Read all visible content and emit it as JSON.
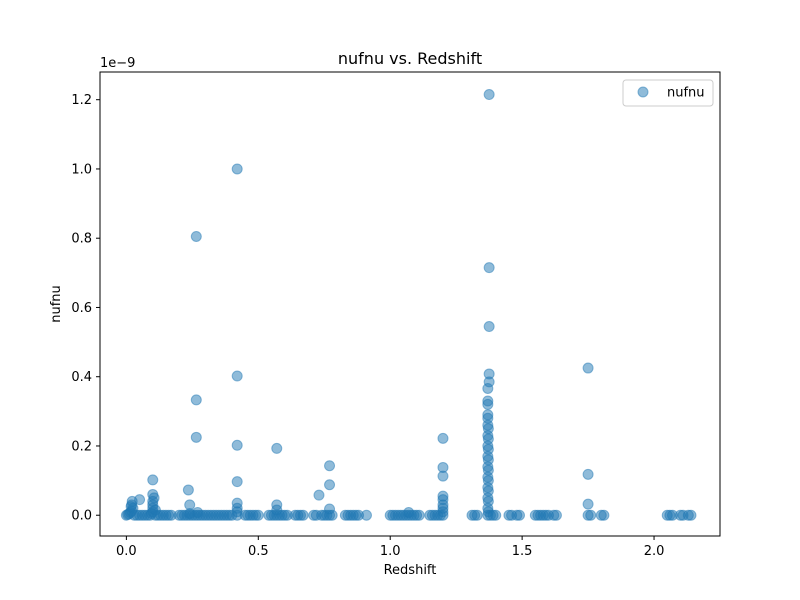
{
  "chart_data": {
    "type": "scatter",
    "title": "nufnu vs. Redshift",
    "xlabel": "Redshift",
    "ylabel": "nufnu",
    "offset_text": "1e−9",
    "xlim": [
      -0.1,
      2.25
    ],
    "ylim": [
      -0.06,
      1.28
    ],
    "xticks": [
      0.0,
      0.5,
      1.0,
      1.5,
      2.0
    ],
    "xtick_labels": [
      "0.0",
      "0.5",
      "1.0",
      "1.5",
      "2.0"
    ],
    "yticks": [
      0.0,
      0.2,
      0.4,
      0.6,
      0.8,
      1.0,
      1.2
    ],
    "ytick_labels": [
      "0.0",
      "0.2",
      "0.4",
      "0.6",
      "0.8",
      "1.0",
      "1.2"
    ],
    "grid": false,
    "legend_position": "top-right",
    "color": "#1f77b4",
    "marker_alpha": 0.5,
    "series": [
      {
        "name": "nufnu",
        "points": [
          [
            0.0,
            0.0
          ],
          [
            0.005,
            0.002
          ],
          [
            0.01,
            0.004
          ],
          [
            0.015,
            0.008
          ],
          [
            0.02,
            0.012
          ],
          [
            0.025,
            0.02
          ],
          [
            0.02,
            0.03
          ],
          [
            0.022,
            0.04
          ],
          [
            0.018,
            0.025
          ],
          [
            0.03,
            0.0
          ],
          [
            0.04,
            0.0
          ],
          [
            0.05,
            0.0
          ],
          [
            0.06,
            0.0
          ],
          [
            0.05,
            0.045
          ],
          [
            0.07,
            0.0
          ],
          [
            0.08,
            0.0
          ],
          [
            0.09,
            0.0
          ],
          [
            0.095,
            0.005
          ],
          [
            0.1,
            0.01
          ],
          [
            0.1,
            0.02
          ],
          [
            0.1,
            0.03
          ],
          [
            0.1,
            0.04
          ],
          [
            0.105,
            0.05
          ],
          [
            0.1,
            0.06
          ],
          [
            0.1,
            0.102
          ],
          [
            0.11,
            0.0
          ],
          [
            0.11,
            0.015
          ],
          [
            0.12,
            0.0
          ],
          [
            0.13,
            0.0
          ],
          [
            0.14,
            0.0
          ],
          [
            0.15,
            0.0
          ],
          [
            0.16,
            0.0
          ],
          [
            0.17,
            0.0
          ],
          [
            0.2,
            0.0
          ],
          [
            0.21,
            0.0
          ],
          [
            0.22,
            0.0
          ],
          [
            0.23,
            0.0
          ],
          [
            0.235,
            0.073
          ],
          [
            0.24,
            0.0
          ],
          [
            0.24,
            0.005
          ],
          [
            0.24,
            0.03
          ],
          [
            0.25,
            0.0
          ],
          [
            0.26,
            0.0
          ],
          [
            0.265,
            0.805
          ],
          [
            0.265,
            0.333
          ],
          [
            0.265,
            0.225
          ],
          [
            0.27,
            0.0
          ],
          [
            0.27,
            0.008
          ],
          [
            0.28,
            0.0
          ],
          [
            0.29,
            0.0
          ],
          [
            0.3,
            0.0
          ],
          [
            0.31,
            0.0
          ],
          [
            0.32,
            0.0
          ],
          [
            0.33,
            0.0
          ],
          [
            0.34,
            0.0
          ],
          [
            0.35,
            0.0
          ],
          [
            0.36,
            0.0
          ],
          [
            0.37,
            0.0
          ],
          [
            0.38,
            0.0
          ],
          [
            0.39,
            0.0
          ],
          [
            0.4,
            0.0
          ],
          [
            0.42,
            0.0
          ],
          [
            0.42,
            1.0
          ],
          [
            0.42,
            0.402
          ],
          [
            0.42,
            0.202
          ],
          [
            0.42,
            0.097
          ],
          [
            0.42,
            0.035
          ],
          [
            0.42,
            0.02
          ],
          [
            0.42,
            0.01
          ],
          [
            0.45,
            0.0
          ],
          [
            0.46,
            0.0
          ],
          [
            0.47,
            0.0
          ],
          [
            0.48,
            0.0
          ],
          [
            0.49,
            0.0
          ],
          [
            0.5,
            0.0
          ],
          [
            0.54,
            0.0
          ],
          [
            0.55,
            0.0
          ],
          [
            0.56,
            0.0
          ],
          [
            0.57,
            0.0
          ],
          [
            0.57,
            0.193
          ],
          [
            0.57,
            0.03
          ],
          [
            0.57,
            0.015
          ],
          [
            0.58,
            0.0
          ],
          [
            0.59,
            0.0
          ],
          [
            0.6,
            0.0
          ],
          [
            0.61,
            0.0
          ],
          [
            0.64,
            0.0
          ],
          [
            0.65,
            0.0
          ],
          [
            0.66,
            0.0
          ],
          [
            0.67,
            0.0
          ],
          [
            0.71,
            0.0
          ],
          [
            0.72,
            0.0
          ],
          [
            0.73,
            0.058
          ],
          [
            0.74,
            0.0
          ],
          [
            0.75,
            0.0
          ],
          [
            0.76,
            0.0
          ],
          [
            0.77,
            0.0
          ],
          [
            0.77,
            0.143
          ],
          [
            0.77,
            0.088
          ],
          [
            0.77,
            0.018
          ],
          [
            0.78,
            0.0
          ],
          [
            0.83,
            0.0
          ],
          [
            0.84,
            0.0
          ],
          [
            0.85,
            0.0
          ],
          [
            0.86,
            0.0
          ],
          [
            0.87,
            0.0
          ],
          [
            0.88,
            0.0
          ],
          [
            0.91,
            0.0
          ],
          [
            1.0,
            0.0
          ],
          [
            1.01,
            0.0
          ],
          [
            1.02,
            0.0
          ],
          [
            1.03,
            0.0
          ],
          [
            1.04,
            0.0
          ],
          [
            1.05,
            0.0
          ],
          [
            1.06,
            0.0
          ],
          [
            1.07,
            0.0
          ],
          [
            1.07,
            0.008
          ],
          [
            1.08,
            0.0
          ],
          [
            1.09,
            0.0
          ],
          [
            1.1,
            0.0
          ],
          [
            1.11,
            0.0
          ],
          [
            1.15,
            0.0
          ],
          [
            1.16,
            0.0
          ],
          [
            1.17,
            0.0
          ],
          [
            1.18,
            0.0
          ],
          [
            1.19,
            0.0
          ],
          [
            1.2,
            0.0
          ],
          [
            1.2,
            0.01
          ],
          [
            1.2,
            0.02
          ],
          [
            1.2,
            0.03
          ],
          [
            1.2,
            0.045
          ],
          [
            1.2,
            0.055
          ],
          [
            1.2,
            0.113
          ],
          [
            1.2,
            0.138
          ],
          [
            1.2,
            0.222
          ],
          [
            1.31,
            0.0
          ],
          [
            1.32,
            0.0
          ],
          [
            1.33,
            0.0
          ],
          [
            1.37,
            0.0
          ],
          [
            1.37,
            0.02
          ],
          [
            1.37,
            0.05
          ],
          [
            1.37,
            0.08
          ],
          [
            1.37,
            0.11
          ],
          [
            1.37,
            0.14
          ],
          [
            1.37,
            0.17
          ],
          [
            1.37,
            0.2
          ],
          [
            1.37,
            0.23
          ],
          [
            1.37,
            0.26
          ],
          [
            1.37,
            0.28
          ],
          [
            1.37,
            0.29
          ],
          [
            1.372,
            0.01
          ],
          [
            1.372,
            0.04
          ],
          [
            1.372,
            0.07
          ],
          [
            1.372,
            0.1
          ],
          [
            1.372,
            0.13
          ],
          [
            1.372,
            0.16
          ],
          [
            1.372,
            0.19
          ],
          [
            1.372,
            0.22
          ],
          [
            1.372,
            0.25
          ],
          [
            1.37,
            0.32
          ],
          [
            1.37,
            0.33
          ],
          [
            1.37,
            0.366
          ],
          [
            1.375,
            0.385
          ],
          [
            1.375,
            0.408
          ],
          [
            1.375,
            0.545
          ],
          [
            1.375,
            0.715
          ],
          [
            1.375,
            1.215
          ],
          [
            1.38,
            0.0
          ],
          [
            1.39,
            0.0
          ],
          [
            1.4,
            0.0
          ],
          [
            1.45,
            0.0
          ],
          [
            1.46,
            0.0
          ],
          [
            1.48,
            0.0
          ],
          [
            1.49,
            0.0
          ],
          [
            1.55,
            0.0
          ],
          [
            1.56,
            0.0
          ],
          [
            1.57,
            0.0
          ],
          [
            1.58,
            0.0
          ],
          [
            1.59,
            0.0
          ],
          [
            1.6,
            0.0
          ],
          [
            1.62,
            0.0
          ],
          [
            1.63,
            0.0
          ],
          [
            1.75,
            0.0
          ],
          [
            1.75,
            0.425
          ],
          [
            1.75,
            0.118
          ],
          [
            1.75,
            0.032
          ],
          [
            1.76,
            0.0
          ],
          [
            1.8,
            0.0
          ],
          [
            1.81,
            0.0
          ],
          [
            2.05,
            0.0
          ],
          [
            2.06,
            0.0
          ],
          [
            2.07,
            0.0
          ],
          [
            2.1,
            0.0
          ],
          [
            2.11,
            0.0
          ],
          [
            2.13,
            0.0
          ],
          [
            2.14,
            0.0
          ]
        ]
      }
    ]
  }
}
